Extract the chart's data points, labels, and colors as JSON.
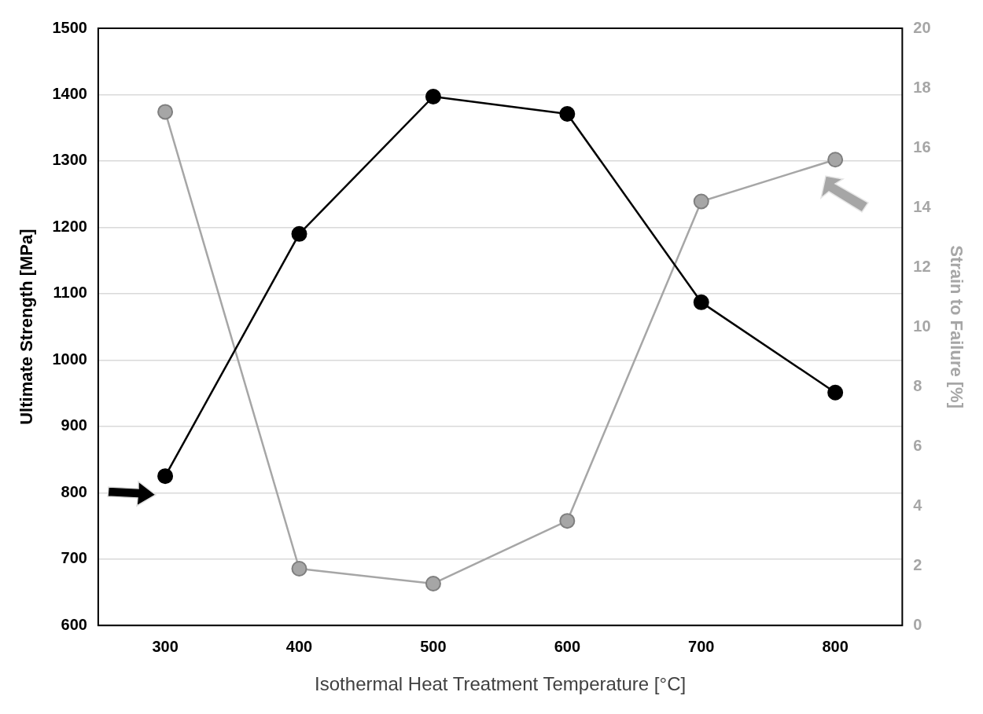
{
  "chart_data": {
    "type": "line",
    "xlabel": "Isothermal Heat Treatment Temperature [°C]",
    "ylabel": "Ultimate Strength [MPa]",
    "y2label": "Strain to Failure [%]",
    "categories": [
      "300",
      "400",
      "500",
      "600",
      "700",
      "800"
    ],
    "series": [
      {
        "color": "#000000",
        "values": [
          825,
          1190,
          1397,
          1371,
          1087,
          951
        ]
      },
      {
        "color": "#a6a6a6",
        "axis": "y2",
        "values": [
          17.2,
          1.9,
          1.4,
          3.5,
          14.2,
          15.6
        ]
      }
    ],
    "ylim": [
      600,
      1500
    ],
    "yticks": [
      600,
      700,
      800,
      900,
      1000,
      1100,
      1200,
      1300,
      1400,
      1500
    ],
    "y2lim": [
      0,
      20
    ],
    "y2ticks": [
      0,
      2,
      4,
      6,
      8,
      10,
      12,
      14,
      16,
      18,
      20
    ],
    "grid": "y",
    "legend": false,
    "marker": "circle",
    "line_style": "solid"
  }
}
